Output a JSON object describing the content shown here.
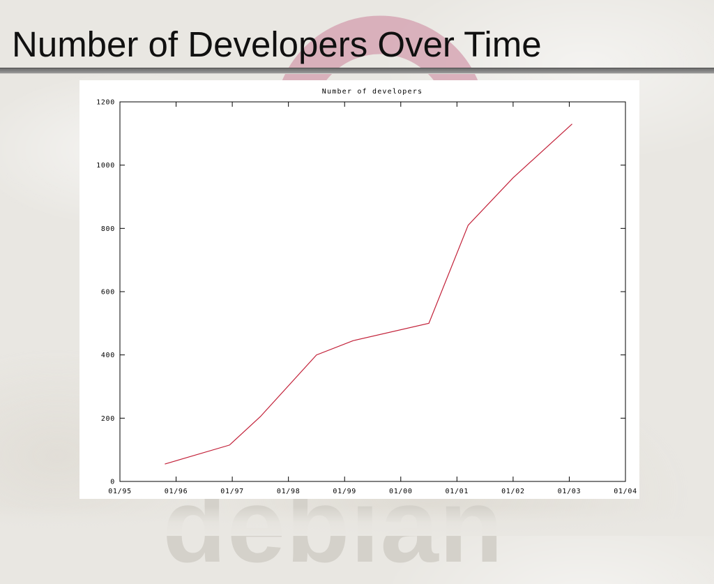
{
  "slide": {
    "title": "Number of Developers Over Time"
  },
  "watermark": {
    "brand_text": "debian",
    "swirl_color": "#d5a3b1",
    "text_color": "#d4d1ca"
  },
  "chart_data": {
    "type": "line",
    "title": "Number of developers",
    "xlabel": "",
    "ylabel": "",
    "grid": false,
    "legend": "none",
    "line_color": "#c22038",
    "xlim": [
      1995,
      2004
    ],
    "ylim": [
      0,
      1200
    ],
    "x_ticks": [
      1995,
      1996,
      1997,
      1998,
      1999,
      2000,
      2001,
      2002,
      2003,
      2004
    ],
    "x_tick_labels": [
      "01/95",
      "01/96",
      "01/97",
      "01/98",
      "01/99",
      "01/00",
      "01/01",
      "01/02",
      "01/03",
      "01/04"
    ],
    "y_ticks": [
      0,
      200,
      400,
      600,
      800,
      1000,
      1200
    ],
    "y_tick_labels": [
      "0",
      "200",
      "400",
      "600",
      "800",
      "1000",
      "1200"
    ],
    "series": [
      {
        "name": "developers",
        "points": [
          {
            "x": 1995.8,
            "y": 55
          },
          {
            "x": 1996.95,
            "y": 115
          },
          {
            "x": 1997.5,
            "y": 205
          },
          {
            "x": 1998.5,
            "y": 400
          },
          {
            "x": 1999.15,
            "y": 445
          },
          {
            "x": 2000.5,
            "y": 500
          },
          {
            "x": 2001.2,
            "y": 810
          },
          {
            "x": 2002.0,
            "y": 960
          },
          {
            "x": 2003.05,
            "y": 1130
          }
        ]
      }
    ]
  }
}
